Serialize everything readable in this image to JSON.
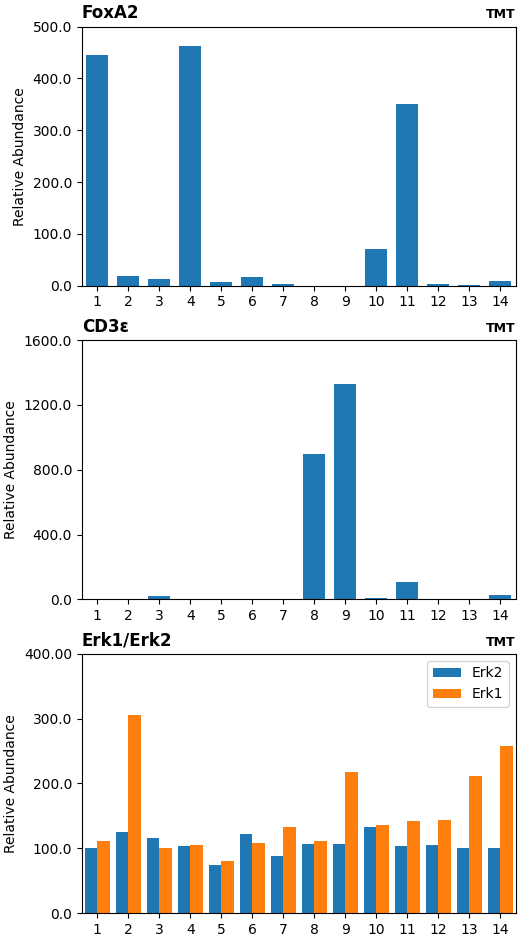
{
  "chart_data": [
    {
      "type": "bar",
      "title": "FoxA2",
      "subtitle": "TMT",
      "ylabel": "Relative Abundance",
      "categories": [
        "1",
        "2",
        "3",
        "4",
        "5",
        "6",
        "7",
        "8",
        "9",
        "10",
        "11",
        "12",
        "13",
        "14"
      ],
      "values": [
        445,
        18,
        14,
        462,
        7,
        17,
        4,
        0,
        0,
        70,
        350,
        3,
        1,
        10
      ],
      "ylim": [
        0,
        500
      ],
      "yticks": [
        {
          "value": 0,
          "label": "0.0"
        },
        {
          "value": 100,
          "label": "100.0"
        },
        {
          "value": 200,
          "label": "200.0"
        },
        {
          "value": 300,
          "label": "300.0"
        },
        {
          "value": 400,
          "label": "400.0"
        },
        {
          "value": 500,
          "label": "500.0"
        }
      ],
      "grid": false
    },
    {
      "type": "bar",
      "title": "CD3ε",
      "subtitle": "TMT",
      "ylabel": "Relative Abundance",
      "categories": [
        "1",
        "2",
        "3",
        "4",
        "5",
        "6",
        "7",
        "8",
        "9",
        "10",
        "11",
        "12",
        "13",
        "14"
      ],
      "values": [
        5,
        4,
        20,
        5,
        3,
        3,
        4,
        900,
        1330,
        8,
        110,
        4,
        3,
        25
      ],
      "ylim": [
        0,
        1600
      ],
      "yticks": [
        {
          "value": 0,
          "label": "0.0"
        },
        {
          "value": 400,
          "label": "400.0"
        },
        {
          "value": 800,
          "label": "800.0"
        },
        {
          "value": 1200,
          "label": "1200.0"
        },
        {
          "value": 1600,
          "label": "1600.0"
        }
      ],
      "grid": false
    },
    {
      "type": "bar",
      "title": "Erk1/Erk2",
      "subtitle": "TMT",
      "ylabel": "Relative Abundance",
      "categories": [
        "1",
        "2",
        "3",
        "4",
        "5",
        "6",
        "7",
        "8",
        "9",
        "10",
        "11",
        "12",
        "13",
        "14"
      ],
      "series": [
        {
          "name": "Erk2",
          "values": [
            100,
            125,
            116,
            104,
            74,
            122,
            88,
            106,
            107,
            133,
            104,
            105,
            101,
            100
          ]
        },
        {
          "name": "Erk1",
          "values": [
            112,
            305,
            100,
            105,
            80,
            108,
            133,
            112,
            218,
            136,
            142,
            143,
            212,
            258
          ]
        }
      ],
      "ylim": [
        0,
        400
      ],
      "yticks": [
        {
          "value": 0,
          "label": "0.0"
        },
        {
          "value": 100,
          "label": "100.0"
        },
        {
          "value": 200,
          "label": "200.0"
        },
        {
          "value": 300,
          "label": "300.0"
        },
        {
          "value": 400,
          "label": "400.00"
        }
      ],
      "legend": "upper right",
      "grid": false
    }
  ]
}
